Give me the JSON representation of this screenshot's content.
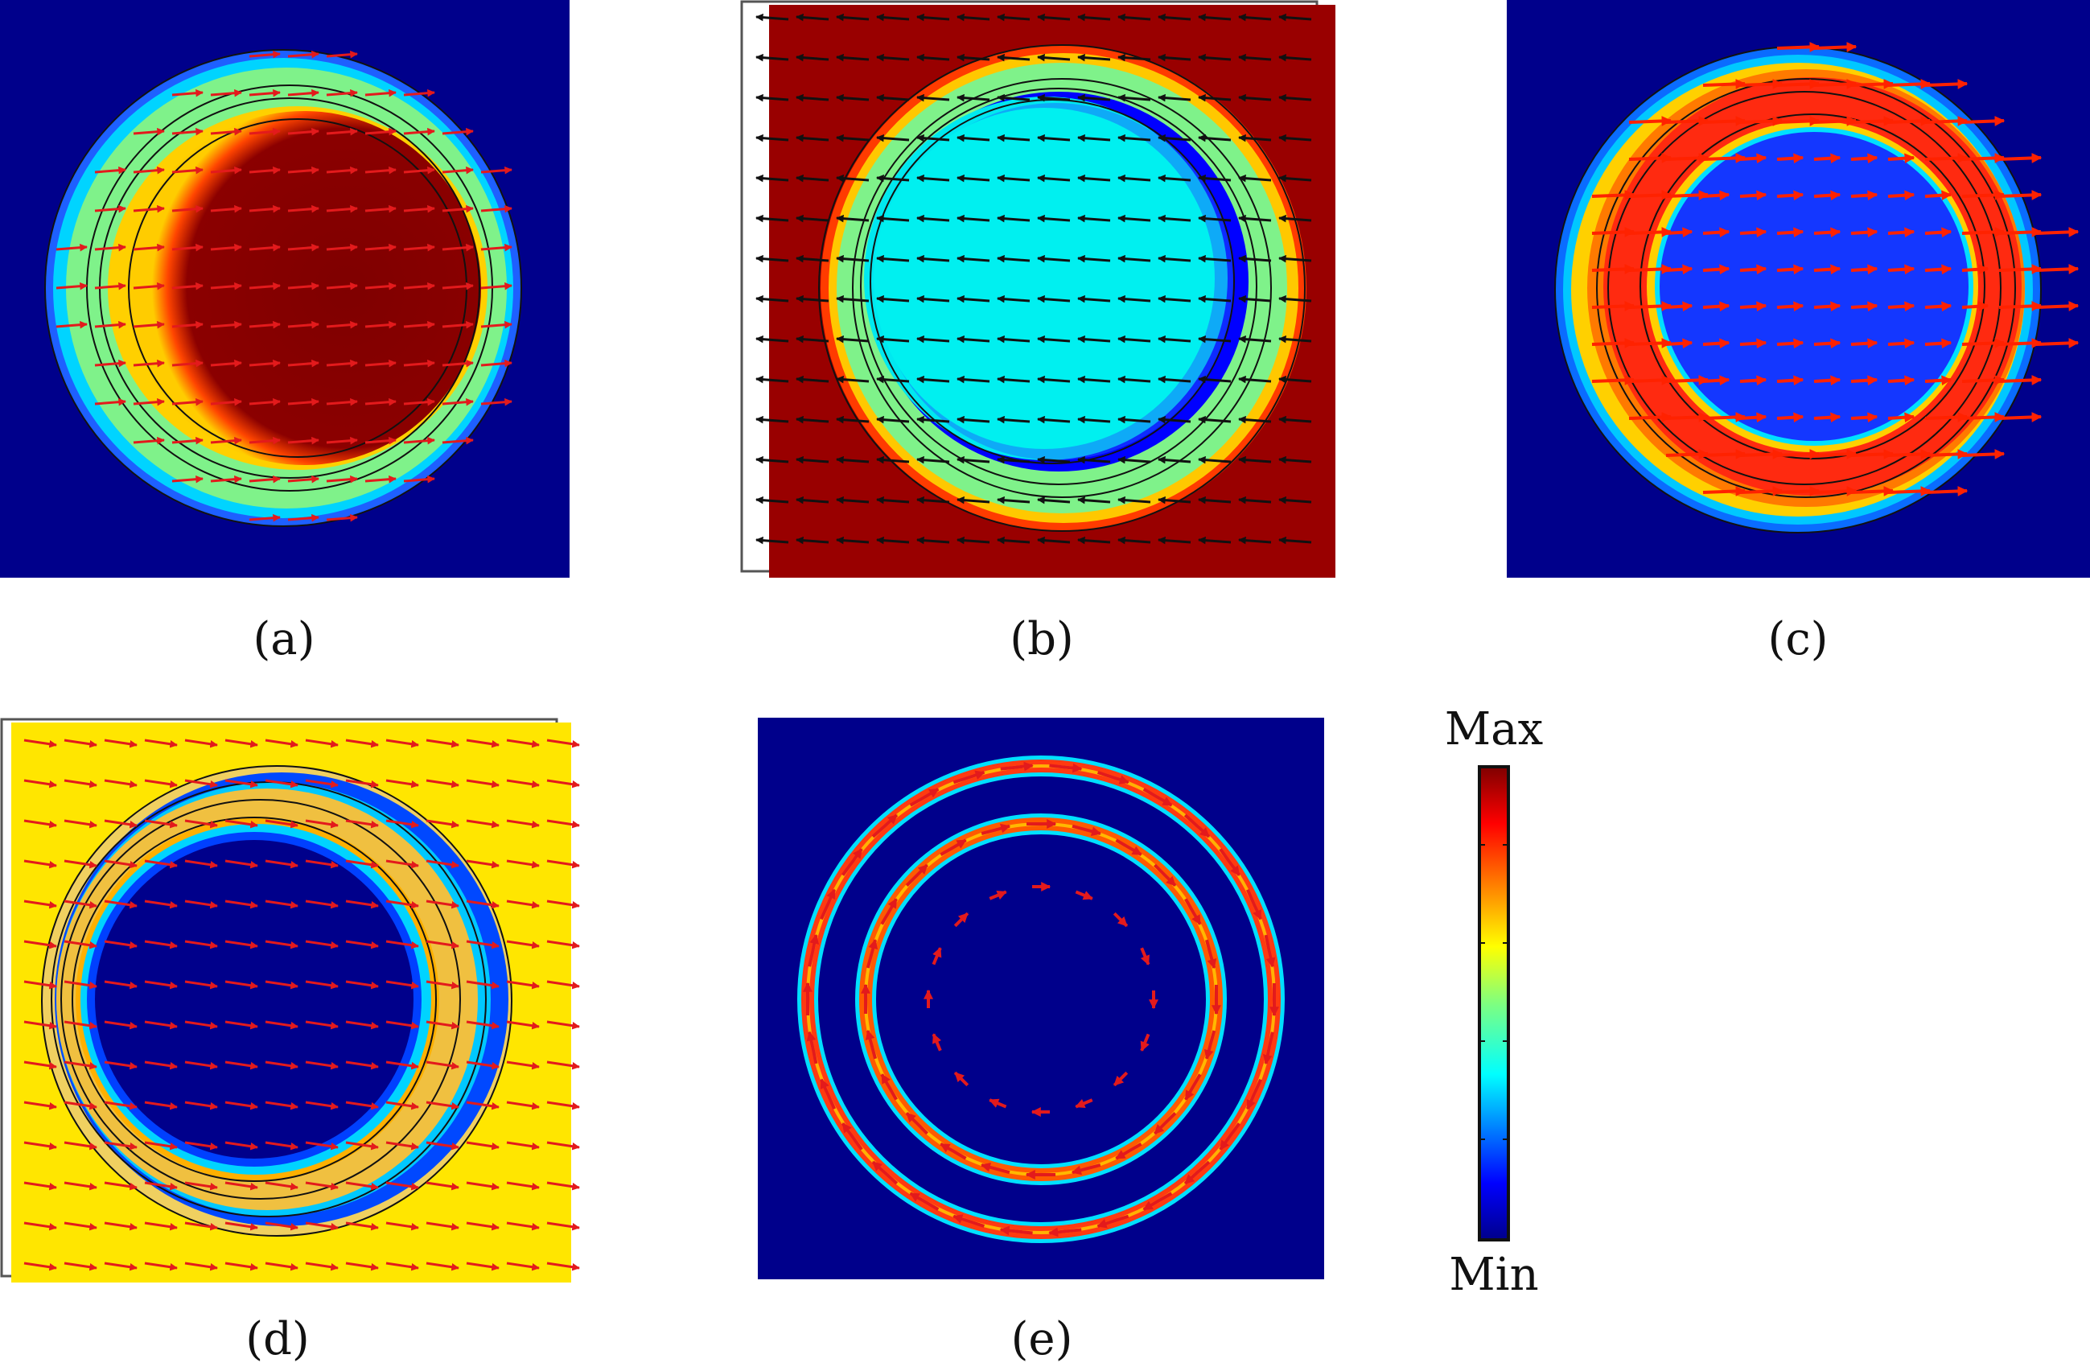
{
  "figure": {
    "panels": [
      {
        "id": "a",
        "caption": "(a)",
        "background": "#00008b",
        "arrow_color": "#e31a1c",
        "arrow_direction": "right"
      },
      {
        "id": "b",
        "caption": "(b)",
        "background": "#990000",
        "arrow_color": "#111111",
        "arrow_direction": "left"
      },
      {
        "id": "c",
        "caption": "(c)",
        "background": "#00008b",
        "arrow_color": "#ff2200",
        "arrow_direction": "right"
      },
      {
        "id": "d",
        "caption": "(d)",
        "background": "#ffe600",
        "arrow_color": "#e31a1c",
        "arrow_direction": "right"
      },
      {
        "id": "e",
        "caption": "(e)",
        "background": "#00008b",
        "arrow_color": "#e31a1c",
        "arrow_direction": "circulating"
      }
    ],
    "colorbar": {
      "max_label": "Max",
      "min_label": "Min",
      "colors": [
        "#00008b",
        "#0000ff",
        "#00ffff",
        "#7fff7f",
        "#ffff00",
        "#ff7f00",
        "#ff0000",
        "#7f0000"
      ]
    }
  }
}
